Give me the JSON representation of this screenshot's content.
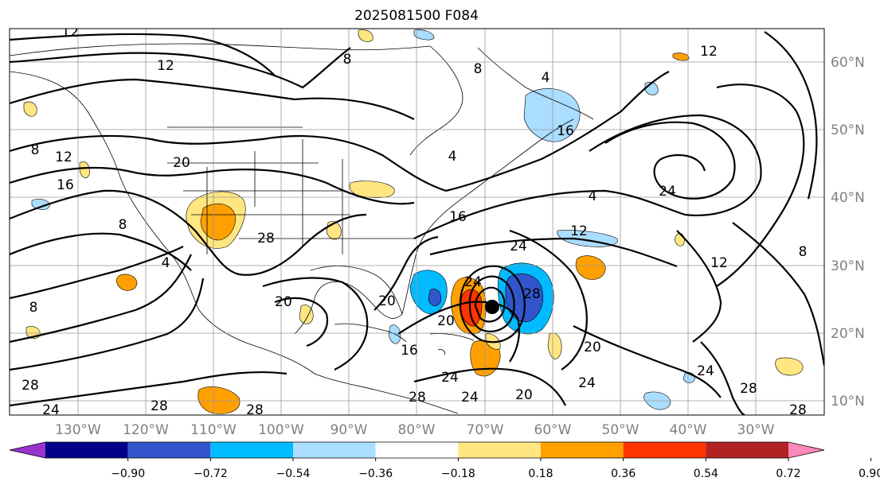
{
  "title": "2025081500 F084",
  "longitude_labels": [
    "130°W",
    "120°W",
    "110°W",
    "100°W",
    "90°W",
    "80°W",
    "70°W",
    "60°W",
    "50°W",
    "40°W",
    "30°W"
  ],
  "latitude_labels": [
    "60°N",
    "50°N",
    "40°N",
    "30°N",
    "20°N",
    "10°N"
  ],
  "colorbar": {
    "colors": [
      "#9933cc",
      "#000088",
      "#3355cc",
      "#00bbff",
      "#aaddff",
      "#ffffff",
      "#ffe680",
      "#ffa000",
      "#ff3300",
      "#b22222",
      "#ff88bb"
    ],
    "tick_labels": [
      "−0.90",
      "−0.72",
      "−0.54",
      "−0.36",
      "−0.18",
      "0.18",
      "0.36",
      "0.54",
      "0.72",
      "0.90"
    ]
  },
  "contour_labels": [
    "12",
    "12",
    "8",
    "8",
    "4",
    "4",
    "12",
    "20",
    "16",
    "12",
    "8",
    "8",
    "8",
    "4",
    "24",
    "12",
    "16",
    "16",
    "24",
    "28",
    "20",
    "20",
    "16",
    "24",
    "24",
    "28",
    "20",
    "24",
    "12",
    "8",
    "24",
    "24",
    "20",
    "28",
    "28",
    "28",
    "28",
    "24",
    "28",
    "28",
    "20",
    "4"
  ],
  "storm_marker": "storm-center"
}
